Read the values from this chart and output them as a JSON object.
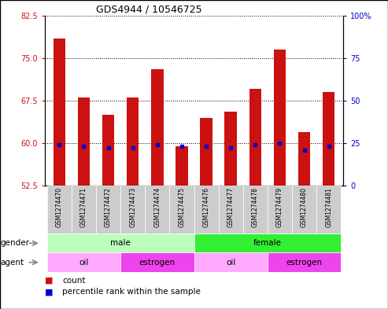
{
  "title": "GDS4944 / 10546725",
  "samples": [
    "GSM1274470",
    "GSM1274471",
    "GSM1274472",
    "GSM1274473",
    "GSM1274474",
    "GSM1274475",
    "GSM1274476",
    "GSM1274477",
    "GSM1274478",
    "GSM1274479",
    "GSM1274480",
    "GSM1274481"
  ],
  "bar_tops": [
    78.5,
    68.0,
    65.0,
    68.0,
    73.0,
    59.5,
    64.5,
    65.5,
    69.5,
    76.5,
    62.0,
    69.0
  ],
  "bar_base": 52.5,
  "blue_marker_vals": [
    59.8,
    59.5,
    59.2,
    59.2,
    59.8,
    59.5,
    59.5,
    59.2,
    59.8,
    60.0,
    58.8,
    59.5
  ],
  "ylim_left": [
    52.5,
    82.5
  ],
  "yticks_left": [
    52.5,
    60.0,
    67.5,
    75.0,
    82.5
  ],
  "ylim_right": [
    0,
    100
  ],
  "yticks_right": [
    0,
    25,
    50,
    75,
    100
  ],
  "ytick_labels_right": [
    "0",
    "25",
    "50",
    "75",
    "100%"
  ],
  "bar_color": "#cc1111",
  "blue_color": "#0000cc",
  "gender_groups": [
    {
      "label": "male",
      "start": 0,
      "end": 5,
      "color": "#bbffbb"
    },
    {
      "label": "female",
      "start": 6,
      "end": 11,
      "color": "#33ee33"
    }
  ],
  "agent_groups": [
    {
      "label": "oil",
      "start": 0,
      "end": 2,
      "color": "#ffaaff"
    },
    {
      "label": "estrogen",
      "start": 3,
      "end": 5,
      "color": "#ee44ee"
    },
    {
      "label": "oil",
      "start": 6,
      "end": 8,
      "color": "#ffaaff"
    },
    {
      "label": "estrogen",
      "start": 9,
      "end": 11,
      "color": "#ee44ee"
    }
  ],
  "bar_width": 0.5,
  "tick_label_color_left": "#cc1111",
  "tick_label_color_right": "#0000cc",
  "background_label_row": "#cccccc"
}
